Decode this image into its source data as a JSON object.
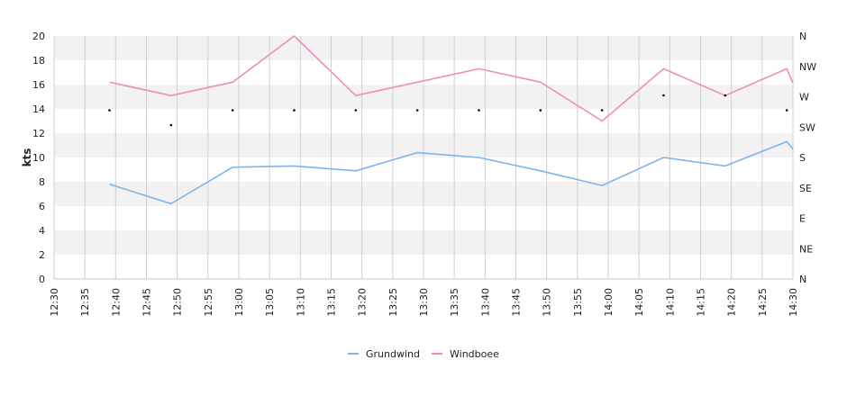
{
  "chart_data": {
    "type": "line",
    "ylabel": "kts",
    "ylim": [
      0,
      20
    ],
    "y_ticks": [
      "0",
      "2",
      "4",
      "6",
      "8",
      "10",
      "12",
      "14",
      "16",
      "18",
      "20"
    ],
    "x_ticks": [
      "12:30",
      "12:35",
      "12:40",
      "12:45",
      "12:50",
      "12:55",
      "13:00",
      "13:05",
      "13:10",
      "13:15",
      "13:20",
      "13:25",
      "13:30",
      "13:35",
      "13:40",
      "13:45",
      "13:50",
      "13:55",
      "14:00",
      "14:05",
      "14:10",
      "14:15",
      "14:20",
      "14:25",
      "14:30"
    ],
    "right_axis_ticks": [
      "N",
      "NE",
      "E",
      "SE",
      "S",
      "SW",
      "W",
      "NW",
      "N"
    ],
    "right_axis_range": [
      0,
      360
    ],
    "grid": "horizontal bands and vertical lines",
    "legend_position": "bottom",
    "colors": {
      "Grundwind": "#7cb5ec",
      "Windboee": "#f08cc0",
      "direction": "#000000"
    },
    "x": [
      "12:39",
      "12:49",
      "12:59",
      "13:09",
      "13:19",
      "13:29",
      "13:39",
      "13:49",
      "13:59",
      "14:09",
      "14:19",
      "14:29",
      "14:30"
    ],
    "series": [
      {
        "name": "Grundwind",
        "values": [
          7.8,
          6.2,
          9.2,
          9.3,
          8.9,
          10.4,
          10.0,
          8.9,
          7.7,
          10.0,
          9.3,
          11.3,
          10.7
        ]
      },
      {
        "name": "Windboee",
        "values": [
          16.2,
          15.1,
          16.2,
          20.0,
          15.1,
          16.2,
          17.3,
          16.2,
          13.0,
          17.3,
          15.1,
          17.3,
          16.1
        ]
      }
    ],
    "direction_points": {
      "x": [
        "12:39",
        "12:49",
        "12:59",
        "13:09",
        "13:19",
        "13:29",
        "13:39",
        "13:49",
        "13:59",
        "14:09",
        "14:19",
        "14:29"
      ],
      "values_deg": [
        250,
        228,
        250,
        250,
        250,
        250,
        250,
        250,
        250,
        272,
        272,
        250
      ]
    }
  }
}
